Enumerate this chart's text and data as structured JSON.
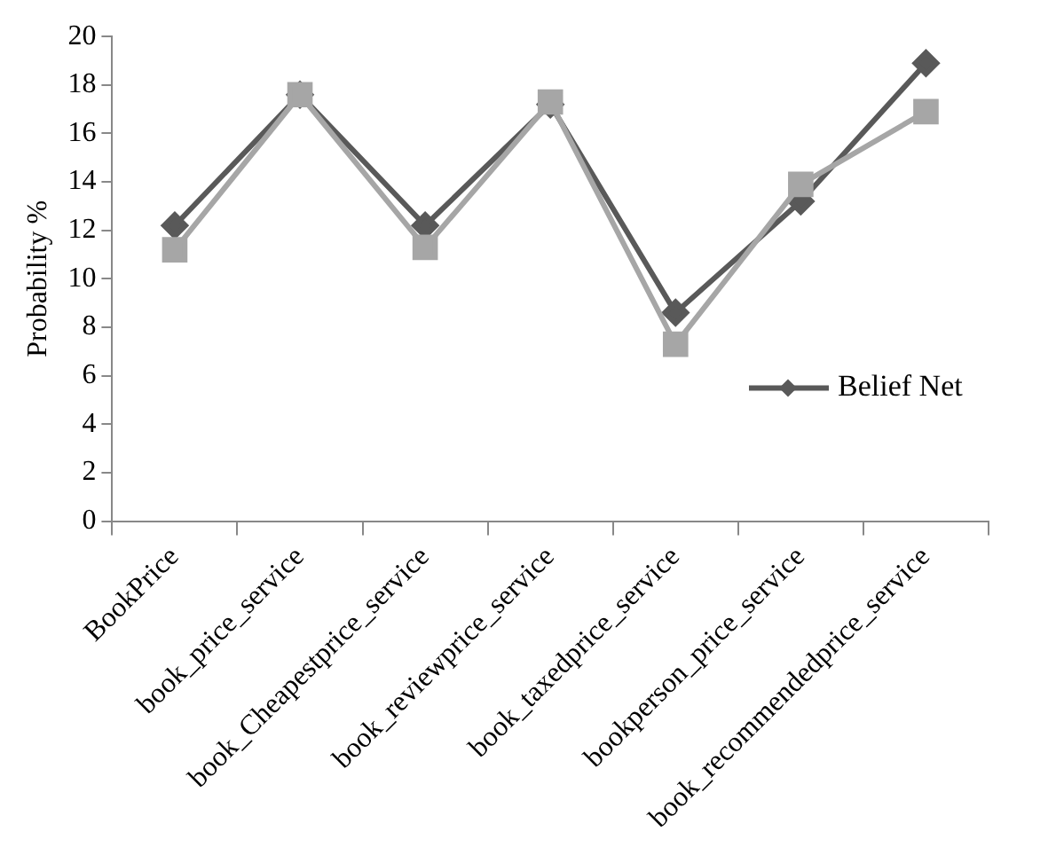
{
  "chart_data": {
    "type": "line",
    "ylabel": "Probability %",
    "categories": [
      "BookPrice",
      "book_price_service",
      "book_Cheapestprice_service",
      "book_reviewprice_service",
      "book_taxedprice_service",
      "bookperson_price_service",
      "book_recommendedprice_service"
    ],
    "series": [
      {
        "name": "Belief Net",
        "color": "#595959",
        "marker": "diamond",
        "values": [
          12.2,
          17.6,
          12.2,
          17.2,
          8.6,
          13.2,
          18.9
        ]
      },
      {
        "color": "#a6a6a6",
        "marker": "square",
        "values": [
          11.2,
          17.6,
          11.3,
          17.3,
          7.3,
          13.9,
          16.9
        ]
      }
    ],
    "ylim": [
      0,
      20
    ],
    "yticks": [
      0,
      2,
      4,
      6,
      8,
      10,
      12,
      14,
      16,
      18,
      20
    ],
    "grid": false,
    "legend": "bottom right",
    "line_style": "solid"
  }
}
